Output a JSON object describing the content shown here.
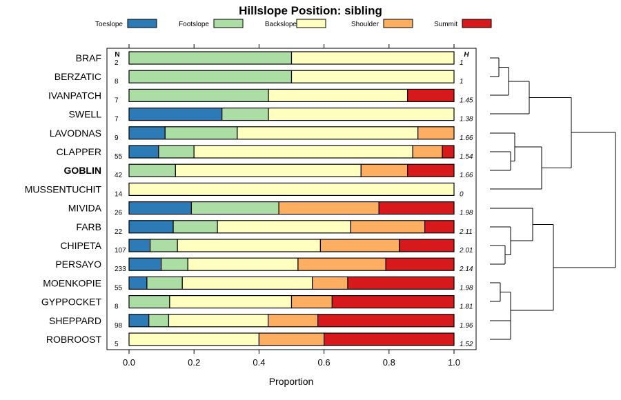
{
  "chart_data": {
    "type": "bar",
    "stacked": true,
    "orientation": "horizontal",
    "title": "Hillslope Position: sibling",
    "xlabel": "Proportion",
    "ylabel": "",
    "xlim": [
      0,
      1
    ],
    "x_ticks": [
      "0.0",
      "0.2",
      "0.4",
      "0.6",
      "0.8",
      "1.0"
    ],
    "x_tick_values": [
      0,
      0.2,
      0.4,
      0.6,
      0.8,
      1.0
    ],
    "n_header": "N",
    "h_header": "H",
    "legend": [
      {
        "name": "Toeslope",
        "color": "#2c7bb6"
      },
      {
        "name": "Footslope",
        "color": "#abdda4"
      },
      {
        "name": "Backslope",
        "color": "#ffffbf"
      },
      {
        "name": "Shoulder",
        "color": "#fdae61"
      },
      {
        "name": "Summit",
        "color": "#d7191c"
      }
    ],
    "highlighted": "GOBLIN",
    "categories": [
      "BRAF",
      "BERZATIC",
      "IVANPATCH",
      "SWELL",
      "LAVODNAS",
      "CLAPPER",
      "GOBLIN",
      "MUSSENTUCHIT",
      "MIVIDA",
      "FARB",
      "CHIPETA",
      "PERSAYO",
      "MOENKOPIE",
      "GYPPOCKET",
      "SHEPPARD",
      "ROBROOST"
    ],
    "n": [
      "2",
      "8",
      "7",
      "7",
      "9",
      "55",
      "42",
      "14",
      "26",
      "22",
      "107",
      "233",
      "55",
      "8",
      "98",
      "5"
    ],
    "h": [
      "1",
      "1",
      "1.45",
      "1.38",
      "1.66",
      "1.54",
      "1.66",
      "0",
      "1.98",
      "2.11",
      "2.01",
      "2.14",
      "1.98",
      "1.81",
      "1.96",
      "1.52"
    ],
    "series": [
      {
        "name": "Toeslope",
        "values": [
          0,
          0,
          0,
          0.286,
          0.111,
          0.091,
          0,
          0,
          0.192,
          0.136,
          0.065,
          0.099,
          0.055,
          0,
          0.061,
          0
        ]
      },
      {
        "name": "Footslope",
        "values": [
          0.5,
          0.5,
          0.429,
          0.143,
          0.222,
          0.109,
          0.143,
          0,
          0.269,
          0.136,
          0.084,
          0.082,
          0.109,
          0.125,
          0.061,
          0
        ]
      },
      {
        "name": "Backslope",
        "values": [
          0.5,
          0.5,
          0.428,
          0.571,
          0.556,
          0.673,
          0.571,
          1.0,
          0,
          0.41,
          0.44,
          0.339,
          0.4,
          0.375,
          0.306,
          0.4
        ]
      },
      {
        "name": "Shoulder",
        "values": [
          0,
          0,
          0,
          0,
          0.111,
          0.091,
          0.143,
          0,
          0.308,
          0.228,
          0.243,
          0.27,
          0.109,
          0.125,
          0.153,
          0.2
        ]
      },
      {
        "name": "Summit",
        "values": [
          0,
          0,
          0.143,
          0,
          0,
          0.036,
          0.143,
          0,
          0.231,
          0.09,
          0.168,
          0.21,
          0.327,
          0.375,
          0.419,
          0.4
        ]
      }
    ]
  }
}
